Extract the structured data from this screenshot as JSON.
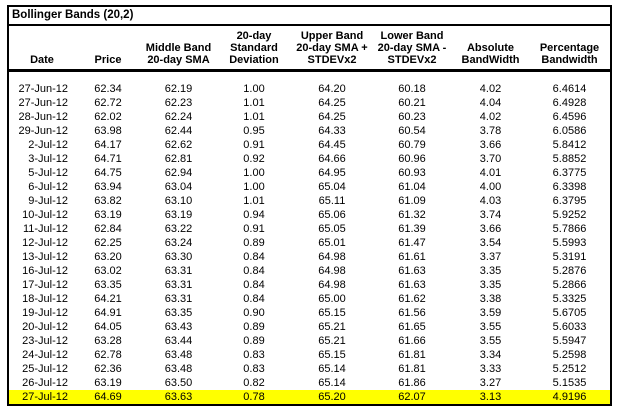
{
  "sheet": {
    "title": "Bollinger Bands (20,2)"
  },
  "columns": [
    {
      "id": "date",
      "label": "Date",
      "lines": [
        "Date"
      ]
    },
    {
      "id": "price",
      "label": "Price",
      "lines": [
        "Price"
      ]
    },
    {
      "id": "middle-band",
      "label": "Middle Band 20-day SMA",
      "lines": [
        "Middle Band",
        "20-day SMA"
      ]
    },
    {
      "id": "std-dev",
      "label": "20-day Standard Deviation",
      "lines": [
        "20-day",
        "Standard",
        "Deviation"
      ]
    },
    {
      "id": "upper-band",
      "label": "Upper Band 20-day SMA + STDEVx2",
      "lines": [
        "Upper Band",
        "20-day SMA +",
        "STDEVx2"
      ]
    },
    {
      "id": "lower-band",
      "label": "Lower Band 20-day SMA - STDEVx2",
      "lines": [
        "Lower Band",
        "20-day SMA  -",
        "STDEVx2"
      ]
    },
    {
      "id": "abs-bandwidth",
      "label": "Absolute BandWidth",
      "lines": [
        "Absolute",
        "BandWidth"
      ]
    },
    {
      "id": "pct-bandwidth",
      "label": "Percentage Bandwidth",
      "lines": [
        "Percentage",
        "Bandwidth"
      ]
    }
  ],
  "rows": [
    [
      "27-Jun-12",
      "62.34",
      "62.19",
      "1.00",
      "64.20",
      "60.18",
      "4.02",
      "6.4614"
    ],
    [
      "27-Jun-12",
      "62.72",
      "62.23",
      "1.01",
      "64.25",
      "60.21",
      "4.04",
      "6.4928"
    ],
    [
      "28-Jun-12",
      "62.02",
      "62.24",
      "1.01",
      "64.25",
      "60.23",
      "4.02",
      "6.4596"
    ],
    [
      "29-Jun-12",
      "63.98",
      "62.44",
      "0.95",
      "64.33",
      "60.54",
      "3.78",
      "6.0586"
    ],
    [
      "2-Jul-12",
      "64.17",
      "62.62",
      "0.91",
      "64.45",
      "60.79",
      "3.66",
      "5.8412"
    ],
    [
      "3-Jul-12",
      "64.71",
      "62.81",
      "0.92",
      "64.66",
      "60.96",
      "3.70",
      "5.8852"
    ],
    [
      "5-Jul-12",
      "64.75",
      "62.94",
      "1.00",
      "64.95",
      "60.93",
      "4.01",
      "6.3775"
    ],
    [
      "6-Jul-12",
      "63.94",
      "63.04",
      "1.00",
      "65.04",
      "61.04",
      "4.00",
      "6.3398"
    ],
    [
      "9-Jul-12",
      "63.82",
      "63.10",
      "1.01",
      "65.11",
      "61.09",
      "4.03",
      "6.3795"
    ],
    [
      "10-Jul-12",
      "63.19",
      "63.19",
      "0.94",
      "65.06",
      "61.32",
      "3.74",
      "5.9252"
    ],
    [
      "11-Jul-12",
      "62.84",
      "63.22",
      "0.91",
      "65.05",
      "61.39",
      "3.66",
      "5.7866"
    ],
    [
      "12-Jul-12",
      "62.25",
      "63.24",
      "0.89",
      "65.01",
      "61.47",
      "3.54",
      "5.5993"
    ],
    [
      "13-Jul-12",
      "63.20",
      "63.30",
      "0.84",
      "64.98",
      "61.61",
      "3.37",
      "5.3191"
    ],
    [
      "16-Jul-12",
      "63.02",
      "63.31",
      "0.84",
      "64.98",
      "61.63",
      "3.35",
      "5.2876"
    ],
    [
      "17-Jul-12",
      "63.35",
      "63.31",
      "0.84",
      "64.98",
      "61.63",
      "3.35",
      "5.2866"
    ],
    [
      "18-Jul-12",
      "64.21",
      "63.31",
      "0.84",
      "65.00",
      "61.62",
      "3.38",
      "5.3325"
    ],
    [
      "19-Jul-12",
      "64.91",
      "63.35",
      "0.90",
      "65.15",
      "61.56",
      "3.59",
      "5.6705"
    ],
    [
      "20-Jul-12",
      "64.05",
      "63.43",
      "0.89",
      "65.21",
      "61.65",
      "3.55",
      "5.6033"
    ],
    [
      "23-Jul-12",
      "63.28",
      "63.44",
      "0.89",
      "65.21",
      "61.66",
      "3.55",
      "5.5947"
    ],
    [
      "24-Jul-12",
      "62.78",
      "63.48",
      "0.83",
      "65.15",
      "61.81",
      "3.34",
      "5.2598"
    ],
    [
      "25-Jul-12",
      "62.36",
      "63.48",
      "0.83",
      "65.14",
      "61.81",
      "3.33",
      "5.2512"
    ],
    [
      "26-Jul-12",
      "63.19",
      "63.50",
      "0.82",
      "65.14",
      "61.86",
      "3.27",
      "5.1535"
    ],
    [
      "27-Jul-12",
      "64.69",
      "63.63",
      "0.78",
      "65.20",
      "62.07",
      "3.13",
      "4.9196"
    ]
  ],
  "highlight": {
    "row_index": 22,
    "color": "#FFFF00"
  },
  "colors": {
    "border": "#000000",
    "background": "#FFFFFF",
    "text": "#000000",
    "highlight": "#FFFF00"
  }
}
